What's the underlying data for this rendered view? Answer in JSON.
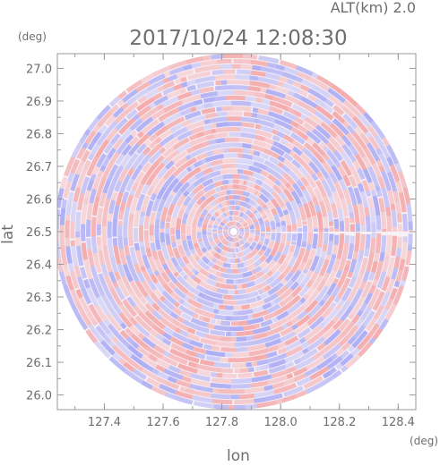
{
  "header": {
    "altitude_text": "ALT(km) 2.0",
    "timestamp": "2017/10/24 12:08:30"
  },
  "chart_data": {
    "type": "heatmap",
    "title": "2017/10/24 12:08:30",
    "xlabel": "lon",
    "ylabel": "lat",
    "xunit": "(deg)",
    "yunit": "(deg)",
    "xlim": [
      127.24,
      128.46
    ],
    "ylim": [
      25.955,
      27.045
    ],
    "xticks": [
      "127.4",
      "127.6",
      "127.8",
      "128.0",
      "128.2",
      "128.4"
    ],
    "yticks": [
      "26.0",
      "26.1",
      "26.2",
      "26.3",
      "26.4",
      "26.5",
      "26.6",
      "26.7",
      "26.8",
      "26.9",
      "27.0"
    ],
    "grid": false,
    "scan_center": {
      "lon": 127.84,
      "lat": 26.5
    },
    "scan_radius_deg": {
      "lon": 0.61,
      "lat": 0.545
    },
    "colors": {
      "positive": "#f4a7a7",
      "negative": "#a9aaf4",
      "axes": "#9a9a9a",
      "text": "#6e6e6e"
    }
  }
}
